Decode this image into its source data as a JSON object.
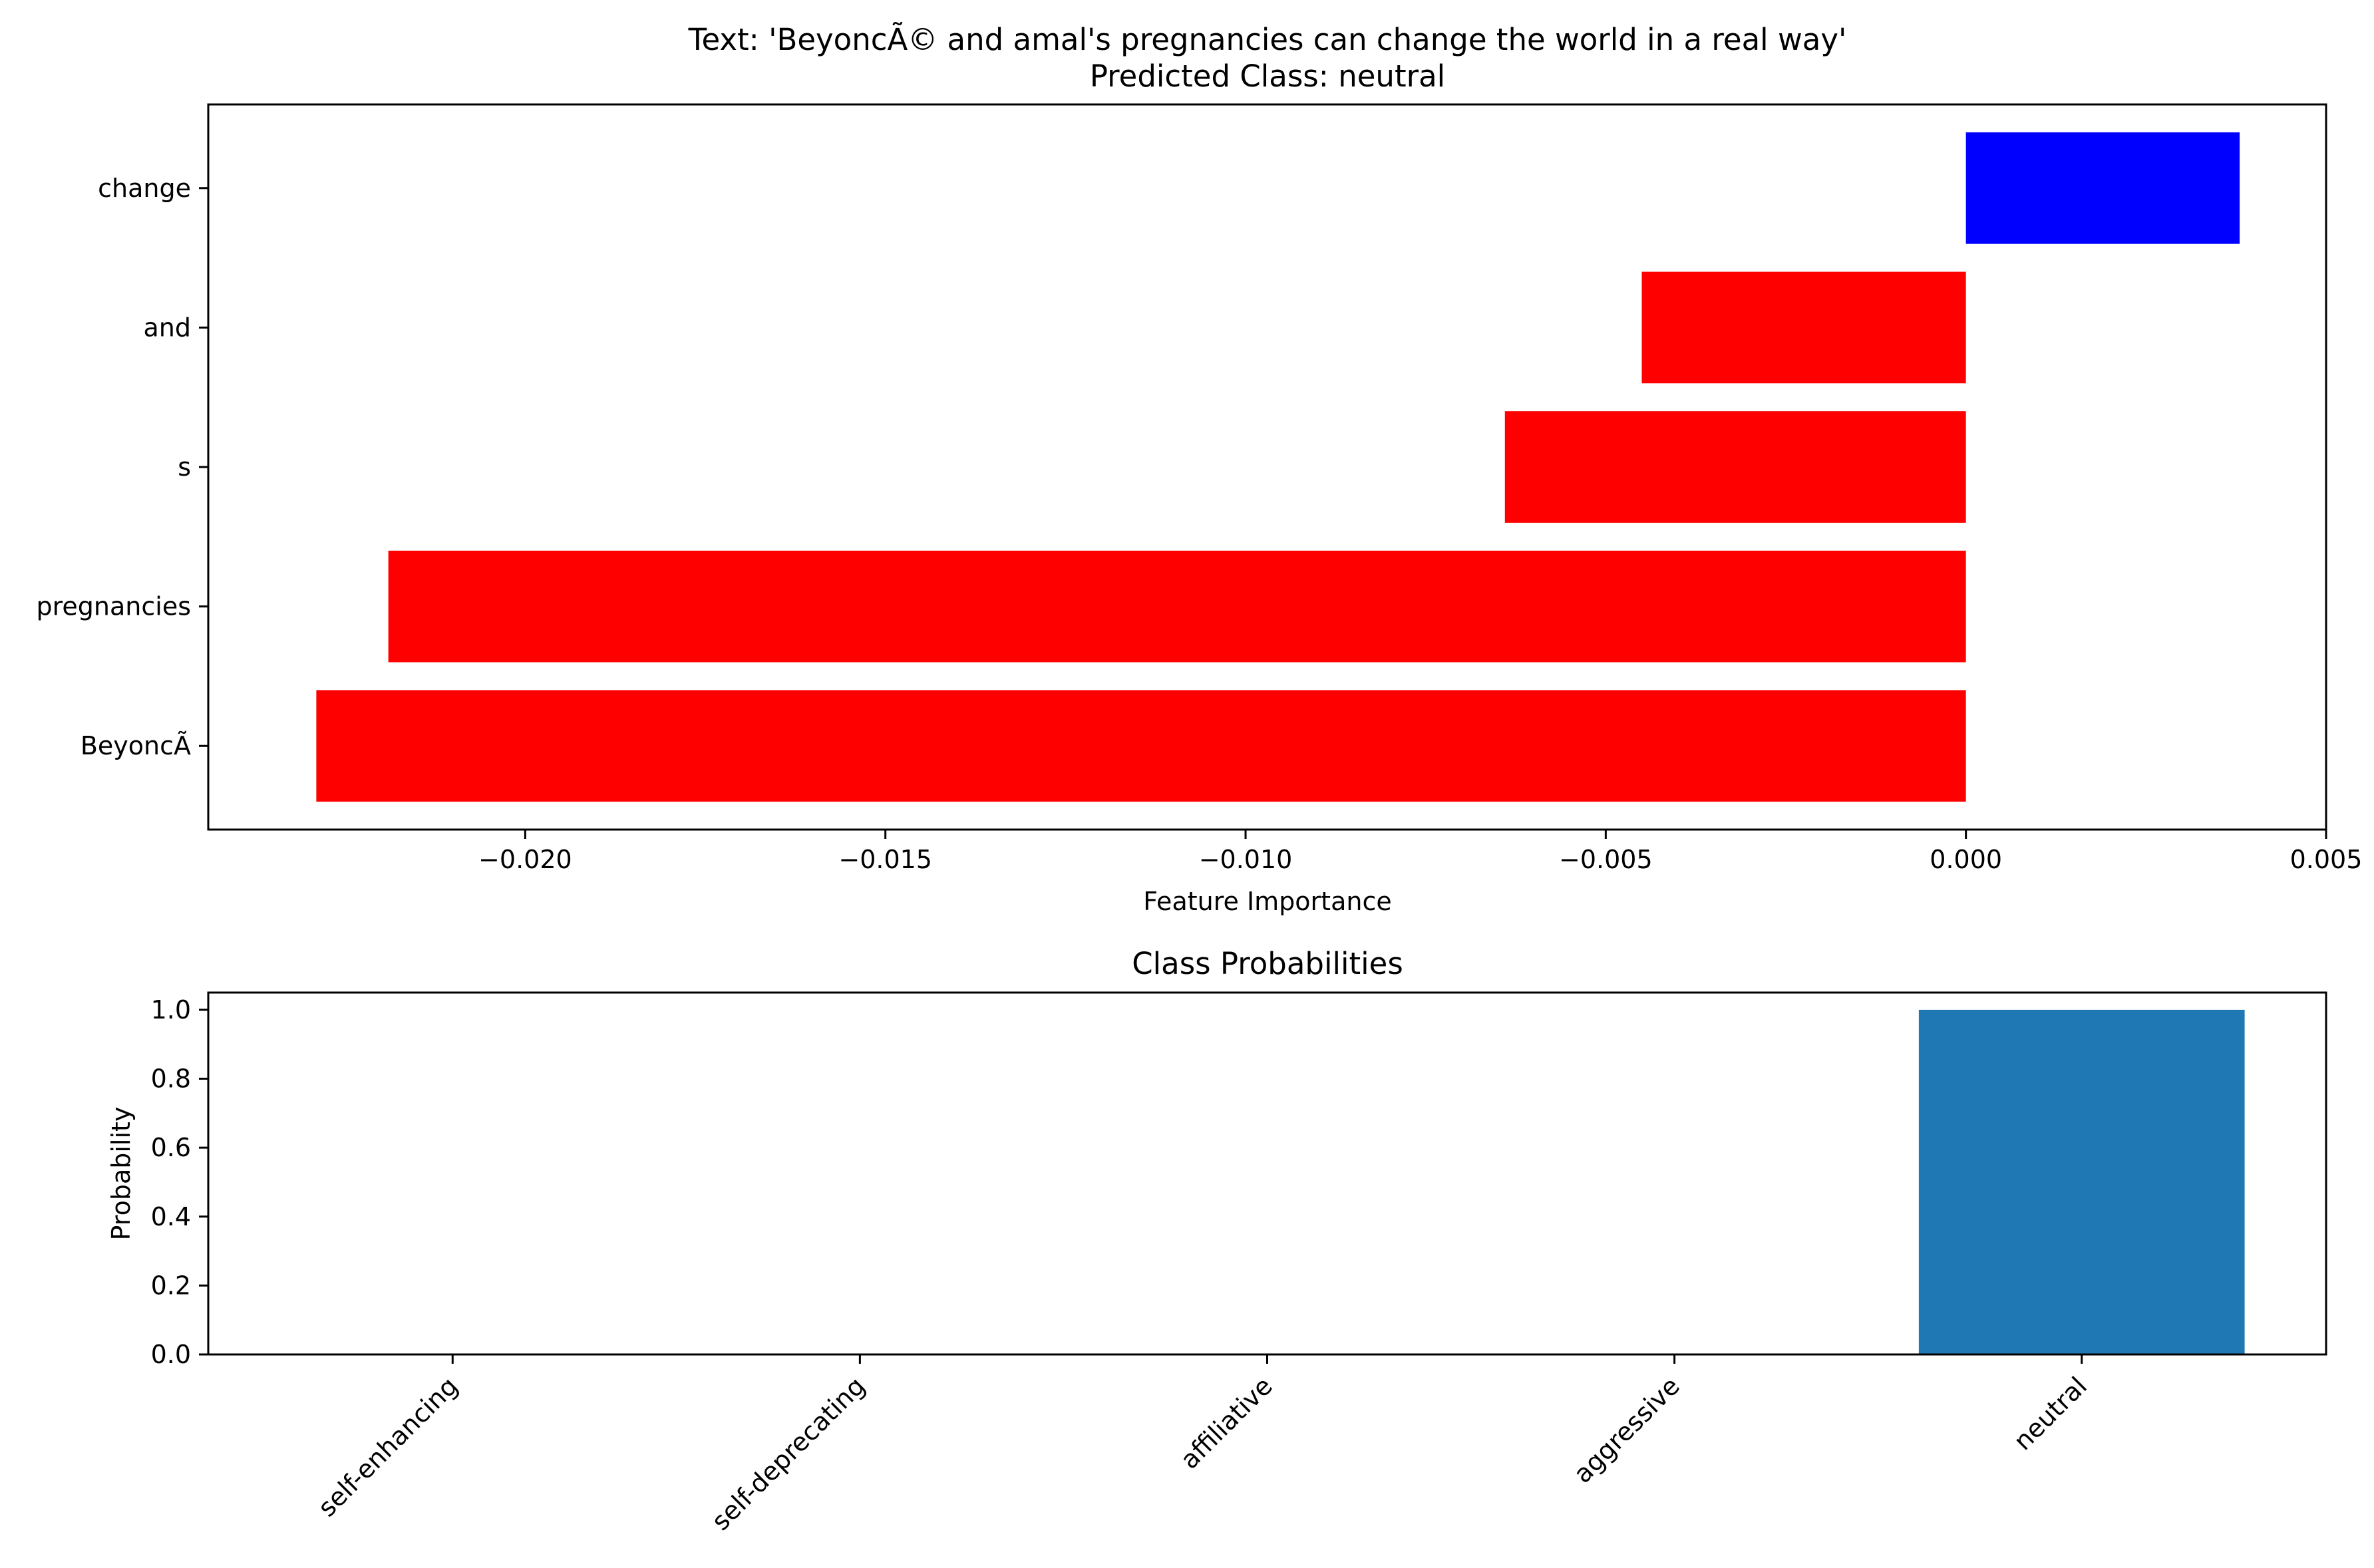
{
  "chart_data": [
    {
      "type": "bar",
      "orientation": "horizontal",
      "title": "Text: 'BeyoncÃ© and amal's pregnancies can change the world in a real way'",
      "subtitle": "Predicted Class: neutral",
      "xlabel": "Feature Importance",
      "ylabel": "",
      "categories": [
        "change",
        "and",
        "s",
        "pregnancies",
        "BeyoncÃ"
      ],
      "values": [
        0.0038,
        -0.0045,
        -0.0064,
        -0.0219,
        -0.0229
      ],
      "colors": [
        "#0000ff",
        "#ff0000",
        "#ff0000",
        "#ff0000",
        "#ff0000"
      ],
      "xlim": [
        -0.0244,
        0.005
      ],
      "xticks": [
        -0.02,
        -0.015,
        -0.01,
        -0.005,
        0.0,
        0.005
      ],
      "xtick_labels": [
        "−0.020",
        "−0.015",
        "−0.010",
        "−0.005",
        "0.000",
        "0.005"
      ],
      "grid": false
    },
    {
      "type": "bar",
      "orientation": "vertical",
      "title": "Class Probabilities",
      "xlabel": "",
      "ylabel": "Probability",
      "categories": [
        "self-enhancing",
        "self-deprecating",
        "affiliative",
        "aggressive",
        "neutral"
      ],
      "values": [
        0.0,
        0.0,
        0.0,
        0.0,
        1.0
      ],
      "color": "#1f77b4",
      "ylim": [
        0,
        1.05
      ],
      "yticks": [
        0.0,
        0.2,
        0.4,
        0.6,
        0.8,
        1.0
      ],
      "ytick_labels": [
        "0.0",
        "0.2",
        "0.4",
        "0.6",
        "0.8",
        "1.0"
      ],
      "grid": false
    }
  ]
}
